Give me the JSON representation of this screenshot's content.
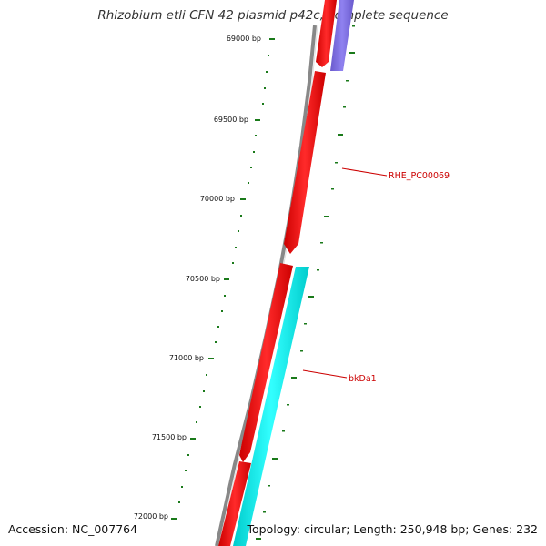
{
  "title": "Rhizobium etli CFN 42 plasmid p42c, complete sequence",
  "footer": {
    "accession": "Accession: NC_007764",
    "summary": "Topology: circular; Length: 250,948 bp; Genes: 232"
  },
  "ticks": [
    "69000 bp",
    "69500 bp",
    "70000 bp",
    "70500 bp",
    "71000 bp",
    "71500 bp",
    "72000 bp"
  ],
  "genes": [
    {
      "name": "RHE_PC00069",
      "color": "#ff0000"
    },
    {
      "name": "bkDa1",
      "color": "#00ffff"
    }
  ],
  "colors": {
    "forward": "#ff0000",
    "reverse_cyan": "#00ffff",
    "reverse_purple": "#7b68ee",
    "backbone": "#888888",
    "tick": "#1a7a1a",
    "label": "#cc0000"
  }
}
